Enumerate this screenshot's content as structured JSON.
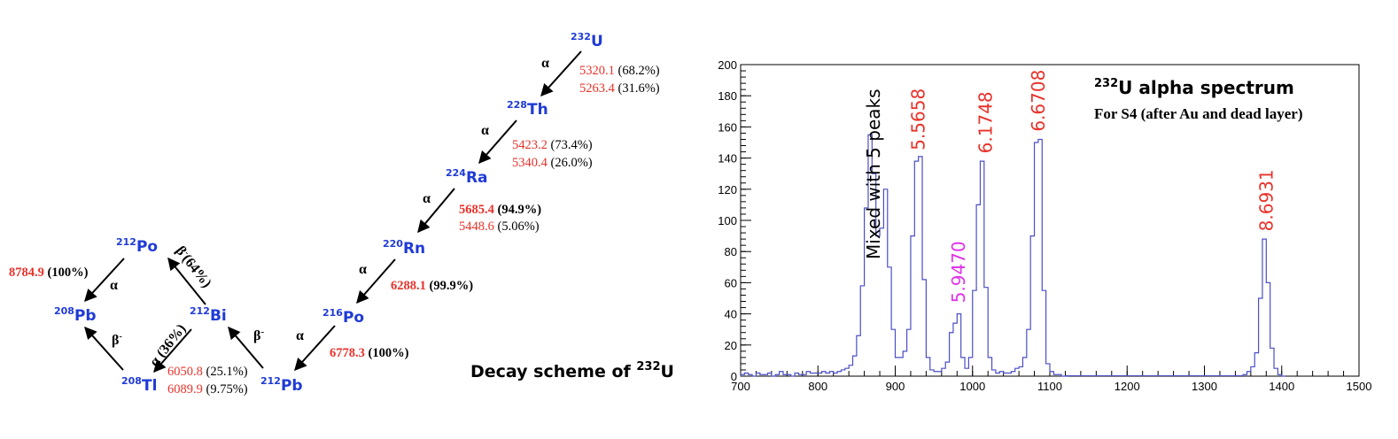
{
  "scheme": {
    "title": "Decay scheme of ",
    "title_sup": "232",
    "title_el": "U",
    "nuclides": [
      {
        "mass": "232",
        "el": "U"
      },
      {
        "mass": "228",
        "el": "Th"
      },
      {
        "mass": "224",
        "el": "Ra"
      },
      {
        "mass": "220",
        "el": "Rn"
      },
      {
        "mass": "216",
        "el": "Po"
      },
      {
        "mass": "212",
        "el": "Pb"
      },
      {
        "mass": "212",
        "el": "Bi"
      },
      {
        "mass": "212",
        "el": "Po"
      },
      {
        "mass": "208",
        "el": "Pb"
      },
      {
        "mass": "208",
        "el": "Tl"
      }
    ],
    "decays": [
      {
        "label": "α",
        "sup": ""
      },
      {
        "label": "α",
        "sup": ""
      },
      {
        "label": "α",
        "sup": ""
      },
      {
        "label": "α",
        "sup": ""
      },
      {
        "label": "α",
        "sup": ""
      },
      {
        "label": "β",
        "sup": "-"
      },
      {
        "label": "β",
        "sup": "-",
        "suffix": "(64%)"
      },
      {
        "label": "α",
        "sup": ""
      },
      {
        "label": "α (36%)",
        "sup": ""
      },
      {
        "label": "β",
        "sup": "-"
      }
    ],
    "energies": [
      {
        "e": "5320.1",
        "p": "(68.2%)",
        "bold": false
      },
      {
        "e": "5263.4",
        "p": "(31.6%)",
        "bold": false
      },
      {
        "e": "5423.2",
        "p": "(73.4%)",
        "bold": false
      },
      {
        "e": "5340.4",
        "p": "(26.0%)",
        "bold": false
      },
      {
        "e": "5685.4",
        "p": "(94.9%)",
        "bold": true
      },
      {
        "e": "5448.6",
        "p": "(5.06%)",
        "bold": false
      },
      {
        "e": "6288.1",
        "p": "(99.9%)",
        "bold": true
      },
      {
        "e": "6778.3",
        "p": "(100%)",
        "bold": true
      },
      {
        "e": "6050.8",
        "p": "(25.1%)",
        "bold": false
      },
      {
        "e": "6089.9",
        "p": "(9.75%)",
        "bold": false
      },
      {
        "e": "8784.9",
        "p": "(100%)",
        "bold": true
      }
    ]
  },
  "chart_data": {
    "type": "histogram",
    "title_sup": "232",
    "title": "U alpha spectrum",
    "subtitle": "For S4 (after Au and dead layer)",
    "xlim": [
      700,
      1500
    ],
    "ylim": [
      0,
      200
    ],
    "xticks": [
      700,
      800,
      900,
      1000,
      1100,
      1200,
      1300,
      1400,
      1500
    ],
    "yticks": [
      0,
      20,
      40,
      60,
      80,
      100,
      120,
      140,
      160,
      180,
      200
    ],
    "line_color": "#4a4ec4",
    "bin_width": 5,
    "x": [
      700,
      705,
      710,
      715,
      720,
      725,
      730,
      735,
      740,
      745,
      750,
      755,
      760,
      765,
      770,
      775,
      780,
      785,
      790,
      795,
      800,
      805,
      810,
      815,
      820,
      825,
      830,
      835,
      840,
      845,
      850,
      855,
      860,
      865,
      870,
      875,
      880,
      885,
      890,
      895,
      900,
      905,
      910,
      915,
      920,
      925,
      930,
      935,
      940,
      945,
      950,
      955,
      960,
      965,
      970,
      975,
      980,
      985,
      990,
      995,
      1000,
      1005,
      1010,
      1015,
      1020,
      1025,
      1030,
      1035,
      1040,
      1045,
      1050,
      1055,
      1060,
      1065,
      1070,
      1075,
      1080,
      1085,
      1090,
      1095,
      1100,
      1105,
      1110,
      1115,
      1120,
      1350,
      1355,
      1360,
      1365,
      1370,
      1375,
      1380,
      1385,
      1390,
      1395,
      1400
    ],
    "y": [
      1,
      2,
      1,
      0,
      2,
      1,
      1,
      2,
      0,
      1,
      3,
      1,
      1,
      0,
      2,
      1,
      1,
      3,
      2,
      2,
      2,
      3,
      2,
      3,
      2,
      3,
      4,
      5,
      7,
      13,
      26,
      58,
      108,
      155,
      130,
      90,
      95,
      120,
      70,
      30,
      12,
      12,
      16,
      30,
      90,
      138,
      141,
      62,
      12,
      4,
      3,
      3,
      5,
      9,
      28,
      34,
      40,
      12,
      5,
      12,
      55,
      110,
      138,
      57,
      12,
      4,
      2,
      3,
      2,
      2,
      3,
      5,
      6,
      12,
      30,
      90,
      150,
      152,
      55,
      8,
      3,
      1,
      1,
      0,
      0,
      1,
      3,
      6,
      15,
      50,
      88,
      60,
      18,
      5,
      1,
      0
    ],
    "annotations": [
      {
        "text": "Mixed with 5 peaks",
        "color": "#000000",
        "x": 872,
        "y": 75
      },
      {
        "text": "5.5658",
        "color": "#e8322a",
        "x": 930,
        "y": 145
      },
      {
        "text": "5.9470",
        "color": "#e033e8",
        "x": 982,
        "y": 47
      },
      {
        "text": "6.1748",
        "color": "#e8322a",
        "x": 1017,
        "y": 143
      },
      {
        "text": "6.6708",
        "color": "#e8322a",
        "x": 1085,
        "y": 157
      },
      {
        "text": "8.6931",
        "color": "#e8322a",
        "x": 1380,
        "y": 93
      }
    ]
  }
}
